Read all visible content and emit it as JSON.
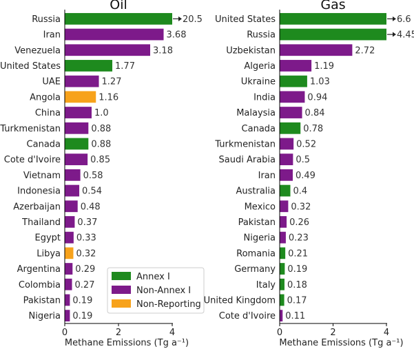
{
  "chart_data": [
    {
      "type": "bar",
      "orientation": "horizontal",
      "title": "Oil",
      "xlabel": "Methane Emissions (Tg a⁻¹)",
      "xlim": [
        0,
        4
      ],
      "xticks": [
        "0",
        "2",
        "4"
      ],
      "categories": [
        "Russia",
        "Iran",
        "Venezuela",
        "United States",
        "UAE",
        "Angola",
        "China",
        "Turkmenistan",
        "Canada",
        "Cote d'Ivoire",
        "Vietnam",
        "Indonesia",
        "Azerbaijan",
        "Thailand",
        "Egypt",
        "Libya",
        "Argentina",
        "Colombia",
        "Pakistan",
        "Nigeria"
      ],
      "values": [
        20.5,
        3.68,
        3.18,
        1.77,
        1.27,
        1.16,
        1.0,
        0.88,
        0.88,
        0.85,
        0.58,
        0.54,
        0.48,
        0.37,
        0.33,
        0.32,
        0.29,
        0.27,
        0.19,
        0.19
      ],
      "value_labels": [
        "20.5",
        "3.68",
        "3.18",
        "1.77",
        "1.27",
        "1.16",
        "1.0",
        "0.88",
        "0.88",
        "0.85",
        "0.58",
        "0.54",
        "0.48",
        "0.37",
        "0.33",
        "0.32",
        "0.29",
        "0.27",
        "0.19",
        "0.19"
      ],
      "groups": [
        "annex",
        "non",
        "non",
        "annex",
        "non",
        "nonrep",
        "non",
        "non",
        "annex",
        "non",
        "non",
        "non",
        "non",
        "non",
        "non",
        "nonrep",
        "non",
        "non",
        "non",
        "non"
      ]
    },
    {
      "type": "bar",
      "orientation": "horizontal",
      "title": "Gas",
      "xlabel": "Methane Emissions (Tg a⁻¹)",
      "xlim": [
        0,
        4
      ],
      "xticks": [
        "0",
        "2",
        "4"
      ],
      "categories": [
        "United States",
        "Russia",
        "Uzbekistan",
        "Algeria",
        "Ukraine",
        "India",
        "Malaysia",
        "Canada",
        "Turkmenistan",
        "Saudi Arabia",
        "Iran",
        "Australia",
        "Mexico",
        "Pakistan",
        "Nigeria",
        "Romania",
        "Germany",
        "Italy",
        "United Kingdom",
        "Cote d'Ivoire"
      ],
      "values": [
        6.6,
        4.45,
        2.72,
        1.19,
        1.03,
        0.94,
        0.84,
        0.78,
        0.52,
        0.5,
        0.49,
        0.4,
        0.32,
        0.26,
        0.23,
        0.21,
        0.19,
        0.18,
        0.17,
        0.11
      ],
      "value_labels": [
        "6.6",
        "4.45",
        "2.72",
        "1.19",
        "1.03",
        "0.94",
        "0.84",
        "0.78",
        "0.52",
        "0.5",
        "0.49",
        "0.4",
        "0.32",
        "0.26",
        "0.23",
        "0.21",
        "0.19",
        "0.18",
        "0.17",
        "0.11"
      ],
      "groups": [
        "annex",
        "annex",
        "non",
        "non",
        "annex",
        "non",
        "non",
        "annex",
        "non",
        "non",
        "non",
        "annex",
        "non",
        "non",
        "non",
        "annex",
        "annex",
        "annex",
        "annex",
        "non"
      ]
    }
  ],
  "legend": {
    "placement": "inside-bottom-right of Oil panel",
    "items": [
      {
        "key": "annex",
        "label": "Annex I",
        "color": "#1e8a1e"
      },
      {
        "key": "non",
        "label": "Non-Annex I",
        "color": "#7d1a8a"
      },
      {
        "key": "nonrep",
        "label": "Non-Reporting",
        "color": "#f7a21b"
      }
    ]
  },
  "colors": {
    "annex": "#1e8a1e",
    "non": "#7d1a8a",
    "nonrep": "#f7a21b"
  }
}
